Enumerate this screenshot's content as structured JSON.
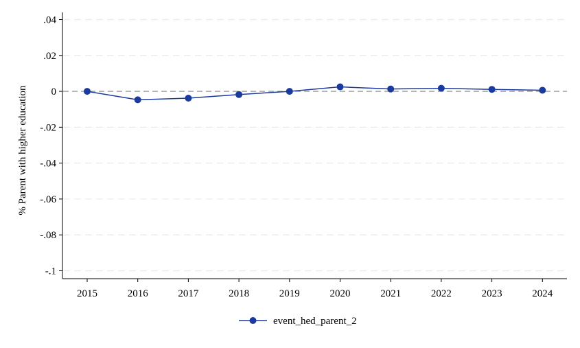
{
  "chart_data": {
    "type": "line",
    "title": "",
    "xlabel": "",
    "ylabel": "% Parent with higher education",
    "x": [
      2015,
      2016,
      2017,
      2018,
      2019,
      2020,
      2021,
      2022,
      2023,
      2024
    ],
    "x_tick_labels": [
      "2015",
      "2016",
      "2017",
      "2018",
      "2019",
      "2020",
      "2021",
      "2022",
      "2023",
      "2024"
    ],
    "y_ticks": [
      0.04,
      0.02,
      0,
      -0.02,
      -0.04,
      -0.06,
      -0.08,
      -0.1
    ],
    "y_tick_labels": [
      ".04",
      ".02",
      "0",
      "-.02",
      "-.04",
      "-.06",
      "-.08",
      "-.1"
    ],
    "ylim": [
      -0.1,
      0.04
    ],
    "grid": "horizontal dashed",
    "reference_line": {
      "y": 0,
      "style": "dashed",
      "color": "#999999"
    },
    "series": [
      {
        "name": "event_hed_parent_2",
        "color": "#1a3a9e",
        "marker": "circle",
        "values": [
          0.0,
          -0.0047,
          -0.0038,
          -0.0018,
          0.0,
          0.0025,
          0.0013,
          0.0017,
          0.0011,
          0.0006
        ]
      }
    ],
    "legend": {
      "placement": "bottom-center"
    }
  }
}
